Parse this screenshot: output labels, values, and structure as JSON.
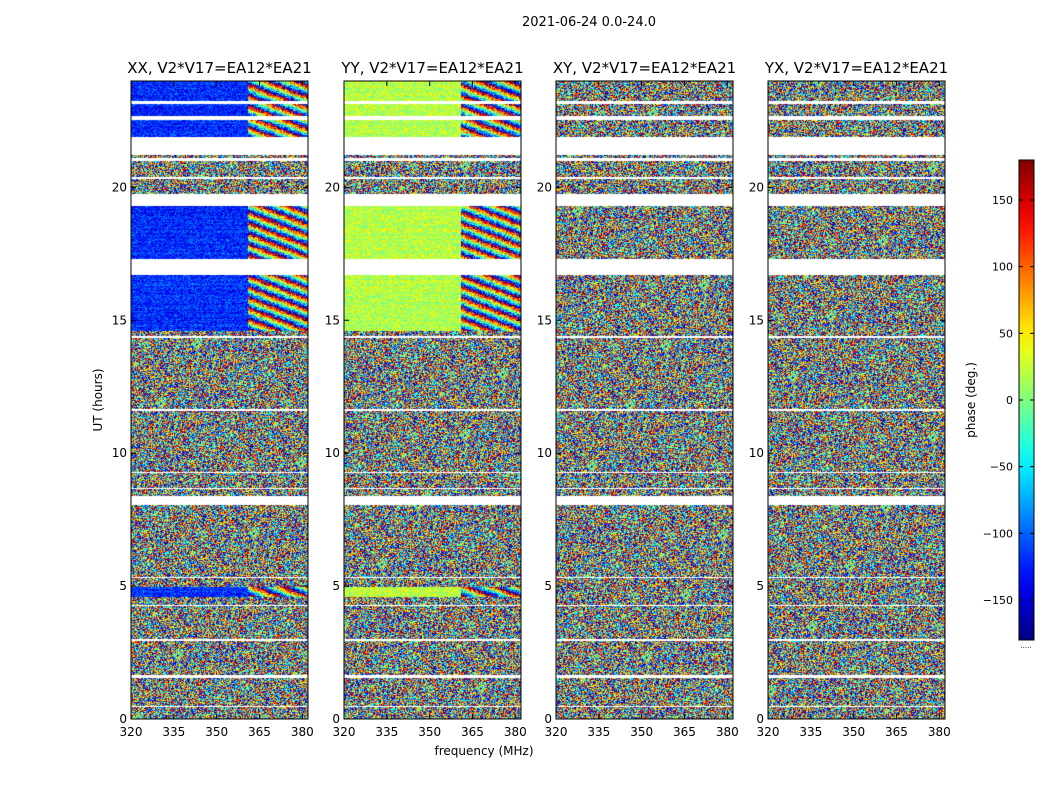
{
  "chart_data": {
    "type": "heatmap",
    "suptitle": "2021-06-24 0.0-24.0",
    "xlabel": "frequency (MHz)",
    "ylabel": "UT (hours)",
    "xlim": [
      320,
      382
    ],
    "ylim": [
      0,
      24
    ],
    "xticks": [
      320,
      335,
      350,
      365,
      380
    ],
    "yticks": [
      0,
      5,
      10,
      15,
      20
    ],
    "colorbar": {
      "label": "phase (deg.)",
      "range": [
        -180,
        180
      ],
      "ticks": [
        150,
        100,
        50,
        0,
        -50,
        -100,
        -150
      ],
      "tick_labels": [
        "150",
        "100",
        "50",
        "0",
        "−50",
        "−100",
        "−150"
      ],
      "colormap": [
        "#00007f",
        "#0000ff",
        "#007fff",
        "#00ffff",
        "#7fff7f",
        "#ffff00",
        "#ff7f00",
        "#ff0000",
        "#7f0000"
      ],
      "footnote": "....."
    },
    "panels": [
      {
        "title": "XX, V2*V17=EA12*EA21",
        "base_phase": -120
      },
      {
        "title": "YY, V2*V17=EA12*EA21",
        "base_phase": 20
      },
      {
        "title": "XY, V2*V17=EA12*EA21",
        "base_phase": null
      },
      {
        "title": "YX, V2*V17=EA12*EA21",
        "base_phase": null
      }
    ],
    "coherent_intervals_ut": [
      [
        4.6,
        4.95
      ],
      [
        14.6,
        16.7
      ],
      [
        17.3,
        19.3
      ],
      [
        21.9,
        24.0
      ]
    ],
    "coherent_band_mhz": [
      320,
      361
    ],
    "gaps_ut": [
      [
        0.45,
        0.5
      ],
      [
        1.55,
        1.65
      ],
      [
        2.95,
        3.0
      ],
      [
        4.25,
        4.3
      ],
      [
        5.3,
        5.35
      ],
      [
        8.05,
        8.4
      ],
      [
        8.65,
        8.7
      ],
      [
        9.25,
        9.3
      ],
      [
        11.6,
        11.65
      ],
      [
        14.35,
        14.4
      ],
      [
        16.7,
        17.3
      ],
      [
        19.3,
        19.75
      ],
      [
        20.3,
        20.4
      ],
      [
        21.0,
        21.1
      ],
      [
        21.2,
        21.9
      ],
      [
        22.55,
        22.7
      ],
      [
        23.15,
        23.25
      ]
    ]
  }
}
